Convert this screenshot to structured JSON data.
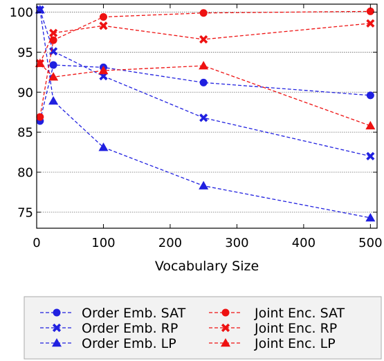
{
  "chart_data": {
    "type": "line",
    "xlabel": "Vocabulary Size",
    "ylabel": "",
    "xlim": [
      0,
      510
    ],
    "ylim": [
      73,
      101
    ],
    "xticks": [
      0,
      100,
      200,
      300,
      400,
      500
    ],
    "yticks": [
      75,
      80,
      85,
      90,
      95,
      100
    ],
    "grid": "horizontal-dotted",
    "legend_position": "bottom",
    "series": [
      {
        "name": "Order Emb. SAT",
        "color": "#2020e0",
        "marker": "circle",
        "x": [
          5,
          25,
          100,
          250,
          500
        ],
        "y": [
          86.4,
          93.4,
          93.1,
          91.2,
          89.6
        ]
      },
      {
        "name": "Order Emb. RP",
        "color": "#2020e0",
        "marker": "x",
        "x": [
          5,
          25,
          100,
          250,
          500
        ],
        "y": [
          100.3,
          95.1,
          92.0,
          86.8,
          82.0
        ]
      },
      {
        "name": "Order Emb. LP",
        "color": "#2020e0",
        "marker": "triangle",
        "x": [
          5,
          25,
          100,
          250,
          500
        ],
        "y": [
          100.3,
          88.9,
          83.1,
          78.3,
          74.3
        ]
      },
      {
        "name": "Joint Enc. SAT",
        "color": "#ee1111",
        "marker": "circle",
        "x": [
          5,
          25,
          100,
          250,
          500
        ],
        "y": [
          86.9,
          96.5,
          99.4,
          99.9,
          100.1
        ]
      },
      {
        "name": "Joint Enc. RP",
        "color": "#ee1111",
        "marker": "x",
        "x": [
          5,
          25,
          100,
          250,
          500
        ],
        "y": [
          93.6,
          97.4,
          98.3,
          96.6,
          98.6
        ]
      },
      {
        "name": "Joint Enc. LP",
        "color": "#ee1111",
        "marker": "triangle",
        "x": [
          5,
          25,
          100,
          250,
          500
        ],
        "y": [
          93.6,
          91.9,
          92.7,
          93.3,
          85.8
        ]
      }
    ]
  }
}
